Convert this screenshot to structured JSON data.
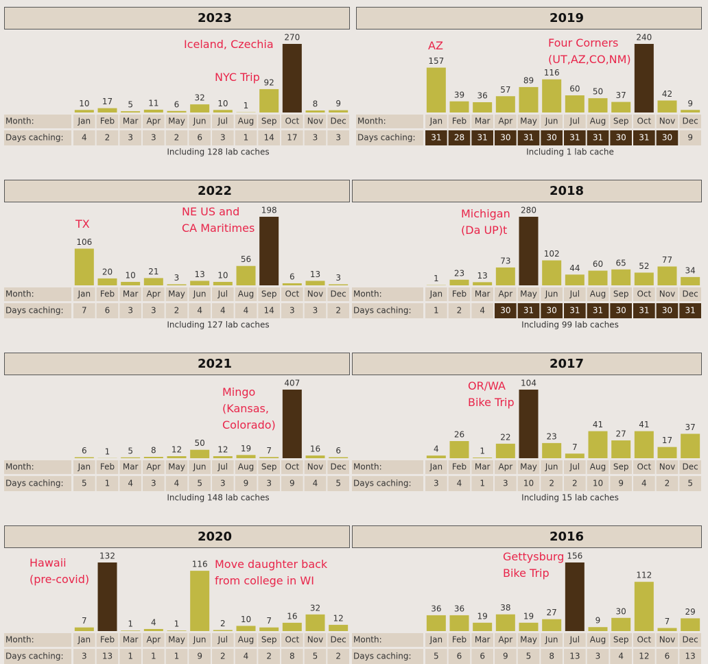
{
  "chart_data": [
    {
      "type": "bar",
      "title": "2023",
      "categories": [
        "Jan",
        "Feb",
        "Mar",
        "Apr",
        "May",
        "Jun",
        "Jul",
        "Aug",
        "Sep",
        "Oct",
        "Nov",
        "Dec"
      ],
      "values": [
        10,
        17,
        5,
        11,
        6,
        32,
        10,
        1,
        92,
        270,
        8,
        9
      ],
      "row_labels": [
        "Month:",
        "Days caching:"
      ],
      "days": [
        4,
        2,
        3,
        3,
        2,
        6,
        3,
        1,
        14,
        17,
        3,
        3
      ],
      "note": "Including 128 lab caches",
      "annotations": [
        [
          "Iceland, Czechia"
        ],
        [
          "NYC Trip"
        ]
      ],
      "color": "#c0b843",
      "highlight_color": "#4a3015"
    },
    {
      "type": "bar",
      "title": "2019",
      "categories": [
        "Jan",
        "Feb",
        "Mar",
        "Apr",
        "May",
        "Jun",
        "Jul",
        "Aug",
        "Sep",
        "Oct",
        "Nov",
        "Dec"
      ],
      "values": [
        157,
        39,
        36,
        57,
        89,
        116,
        60,
        50,
        37,
        240,
        42,
        9
      ],
      "row_labels": [
        "Month:",
        "Days caching:"
      ],
      "days": [
        31,
        28,
        31,
        30,
        31,
        30,
        31,
        31,
        30,
        31,
        30,
        9
      ],
      "note": "Including 1 lab cache",
      "annotations": [
        [
          "AZ"
        ],
        [
          "Four Corners",
          "(UT,AZ,CO,NM)"
        ]
      ],
      "color": "#c0b843",
      "highlight_color": "#4a3015"
    },
    {
      "type": "bar",
      "title": "2022",
      "categories": [
        "Jan",
        "Feb",
        "Mar",
        "Apr",
        "May",
        "Jun",
        "Jul",
        "Aug",
        "Sep",
        "Oct",
        "Nov",
        "Dec"
      ],
      "values": [
        106,
        20,
        10,
        21,
        3,
        13,
        10,
        56,
        198,
        6,
        13,
        3
      ],
      "row_labels": [
        "Month:",
        "Days caching:"
      ],
      "days": [
        7,
        6,
        3,
        3,
        2,
        4,
        4,
        4,
        14,
        3,
        3,
        2
      ],
      "note": "Including 127 lab caches",
      "annotations": [
        [
          "TX"
        ],
        [
          "NE US and",
          "CA Maritimes"
        ]
      ],
      "color": "#c0b843",
      "highlight_color": "#4a3015"
    },
    {
      "type": "bar",
      "title": "2018",
      "categories": [
        "Jan",
        "Feb",
        "Mar",
        "Apr",
        "May",
        "Jun",
        "Jul",
        "Aug",
        "Sep",
        "Oct",
        "Nov",
        "Dec"
      ],
      "values": [
        1,
        23,
        13,
        73,
        280,
        102,
        44,
        60,
        65,
        52,
        77,
        34
      ],
      "row_labels": [
        "Month:",
        "Days caching:"
      ],
      "days": [
        1,
        2,
        4,
        30,
        31,
        30,
        31,
        31,
        30,
        31,
        30,
        31
      ],
      "note": "Including 99 lab caches",
      "annotations": [
        [
          "Michigan",
          "(Da UP)t"
        ]
      ],
      "color": "#c0b843",
      "highlight_color": "#4a3015"
    },
    {
      "type": "bar",
      "title": "2021",
      "categories": [
        "Jan",
        "Feb",
        "Mar",
        "Apr",
        "May",
        "Jun",
        "Jul",
        "Aug",
        "Sep",
        "Oct",
        "Nov",
        "Dec"
      ],
      "values": [
        6,
        1,
        5,
        8,
        12,
        50,
        12,
        19,
        7,
        407,
        16,
        6
      ],
      "row_labels": [
        "Month:",
        "Days caching:"
      ],
      "days": [
        5,
        1,
        4,
        3,
        4,
        5,
        3,
        9,
        3,
        9,
        4,
        5
      ],
      "note": "Including 148 lab caches",
      "annotations": [
        [
          "Mingo",
          "(Kansas,",
          "Colorado)"
        ]
      ],
      "color": "#c0b843",
      "highlight_color": "#4a3015"
    },
    {
      "type": "bar",
      "title": "2017",
      "categories": [
        "Jan",
        "Feb",
        "Mar",
        "Apr",
        "May",
        "Jun",
        "Jul",
        "Aug",
        "Sep",
        "Oct",
        "Nov",
        "Dec"
      ],
      "values": [
        4,
        26,
        1,
        22,
        104,
        23,
        7,
        41,
        27,
        41,
        17,
        37
      ],
      "row_labels": [
        "Month:",
        "Days caching:"
      ],
      "days": [
        3,
        4,
        1,
        3,
        10,
        2,
        2,
        10,
        9,
        4,
        2,
        5
      ],
      "note": "Including 15 lab caches",
      "annotations": [
        [
          "OR/WA",
          "Bike Trip"
        ]
      ],
      "color": "#c0b843",
      "highlight_color": "#4a3015"
    },
    {
      "type": "bar",
      "title": "2020",
      "categories": [
        "Jan",
        "Feb",
        "Mar",
        "Apr",
        "May",
        "Jun",
        "Jul",
        "Aug",
        "Sep",
        "Oct",
        "Nov",
        "Dec"
      ],
      "values": [
        7,
        132,
        1,
        4,
        1,
        116,
        2,
        10,
        7,
        16,
        32,
        12
      ],
      "row_labels": [
        "Month:",
        "Days caching:"
      ],
      "days": [
        3,
        13,
        1,
        1,
        1,
        9,
        2,
        4,
        2,
        8,
        5,
        2
      ],
      "annotations": [
        [
          "Hawaii",
          "(pre-covid)"
        ],
        [
          "Move daughter back",
          "from college in WI"
        ]
      ],
      "color": "#c0b843",
      "highlight_color": "#4a3015"
    },
    {
      "type": "bar",
      "title": "2016",
      "categories": [
        "Jan",
        "Feb",
        "Mar",
        "Apr",
        "May",
        "Jun",
        "Jul",
        "Aug",
        "Sep",
        "Oct",
        "Nov",
        "Dec"
      ],
      "values": [
        36,
        36,
        19,
        38,
        19,
        27,
        156,
        9,
        30,
        112,
        7,
        29
      ],
      "row_labels": [
        "Month:",
        "Days caching:"
      ],
      "days": [
        5,
        6,
        6,
        9,
        5,
        8,
        13,
        3,
        4,
        12,
        6,
        13
      ],
      "annotations": [
        [
          "Gettysburg",
          "Bike Trip"
        ]
      ],
      "color": "#c0b843",
      "highlight_color": "#4a3015"
    }
  ]
}
